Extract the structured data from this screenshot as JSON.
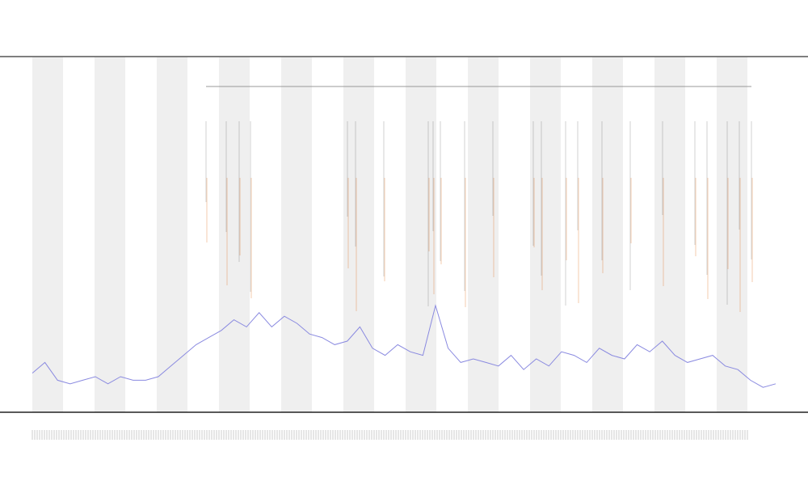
{
  "chart_data": {
    "type": "line",
    "color": "#8a8ae0",
    "ylim": [
      0,
      100
    ],
    "values": [
      11,
      14,
      9,
      8,
      9,
      10,
      8,
      10,
      9,
      9,
      10,
      13,
      16,
      19,
      21,
      23,
      26,
      24,
      28,
      24,
      27,
      25,
      22,
      21,
      19,
      20,
      24,
      18,
      16,
      19,
      17,
      16,
      30,
      18,
      14,
      15,
      14,
      13,
      16,
      12,
      15,
      13,
      17,
      16,
      14,
      18,
      16,
      15,
      19,
      17,
      20,
      16,
      14,
      15,
      16,
      13,
      12,
      9,
      7,
      8
    ]
  }
}
